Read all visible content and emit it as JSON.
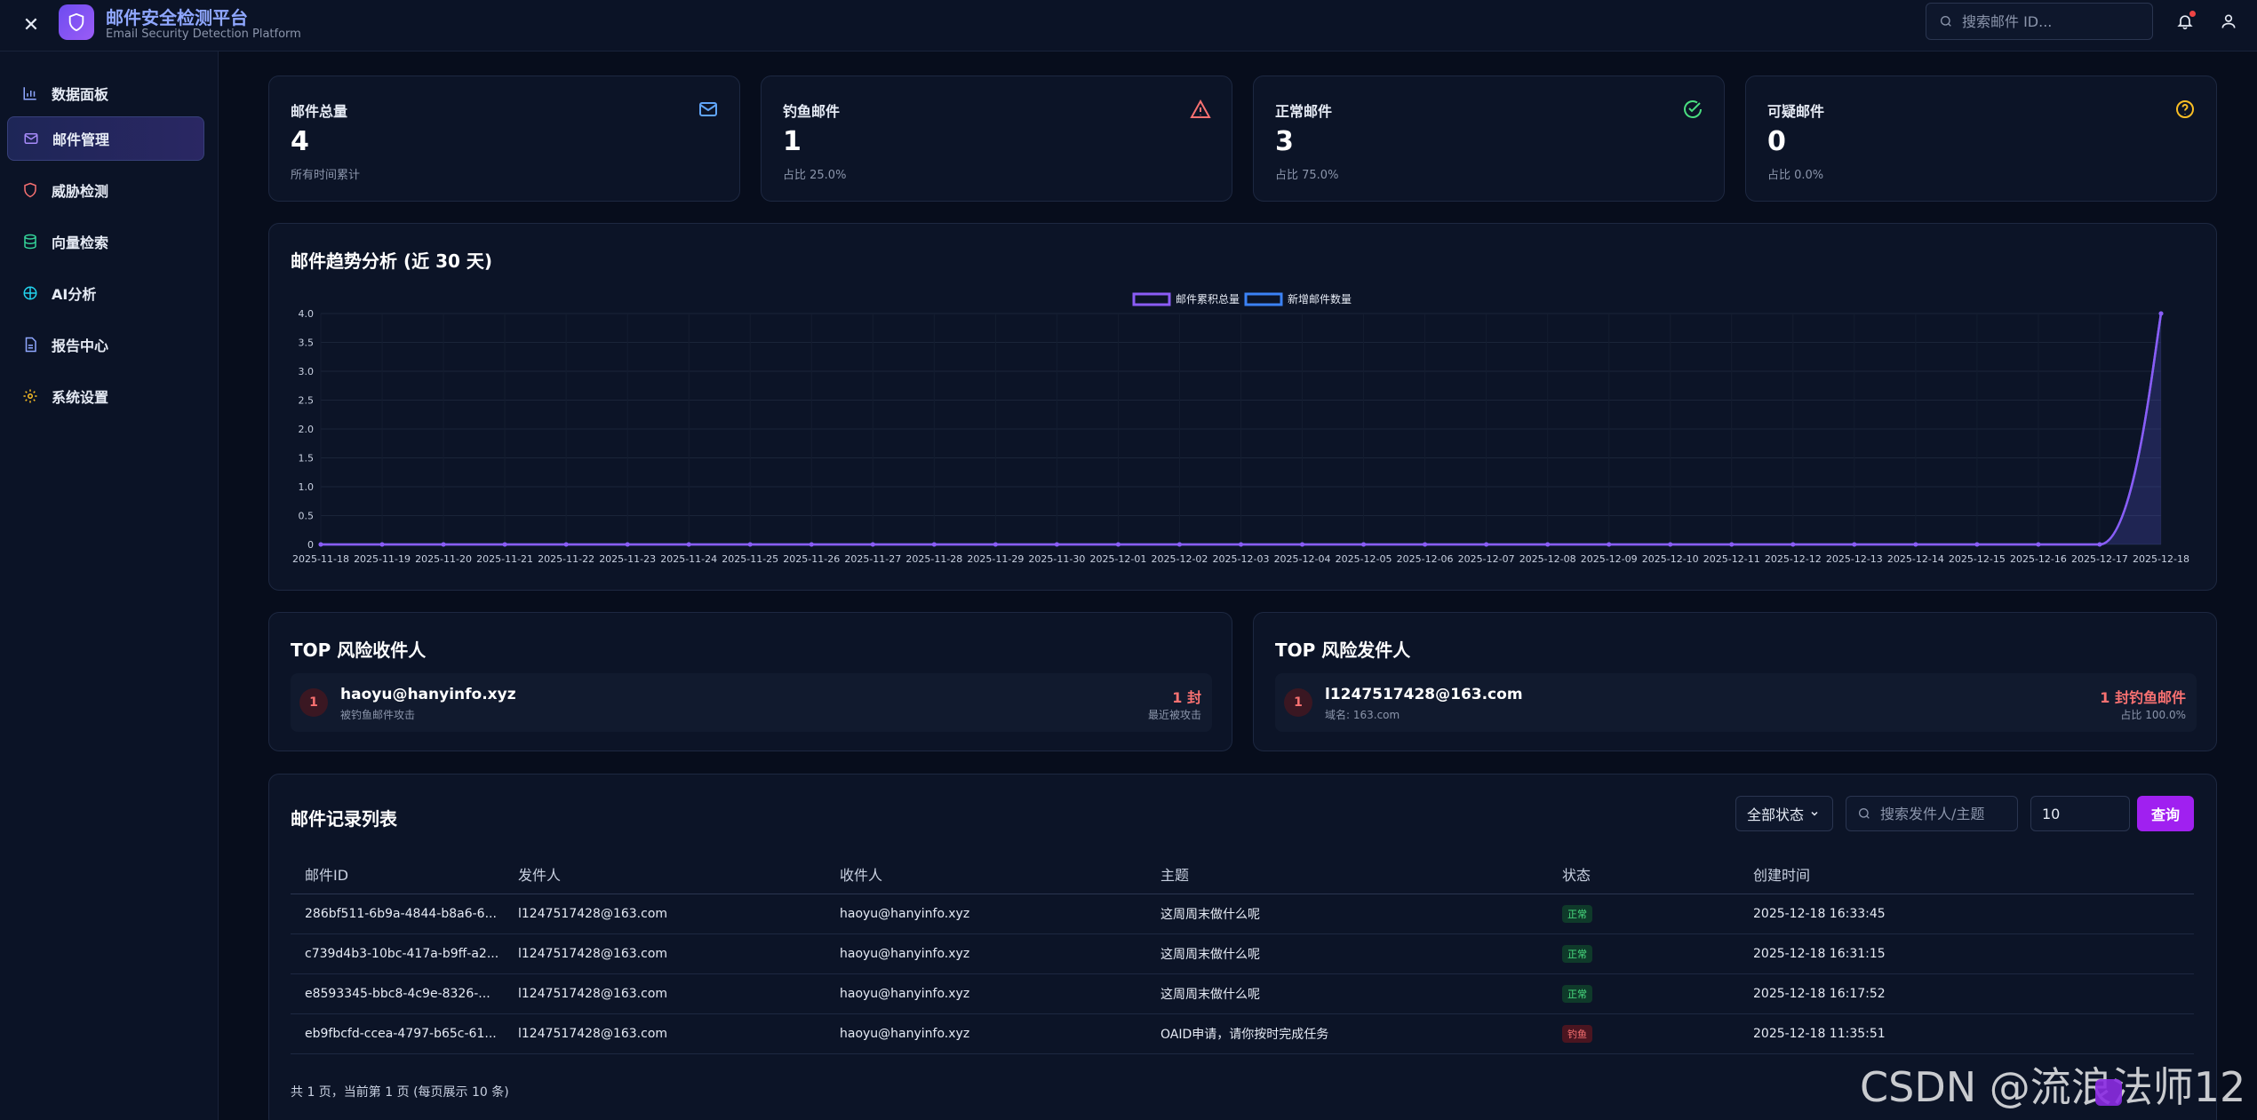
{
  "app": {
    "title": "邮件安全检测平台",
    "subtitle": "Email Security Detection Platform",
    "search_placeholder": "搜索邮件 ID..."
  },
  "sidebar": {
    "items": [
      {
        "label": "数据面板",
        "icon": "bar-chart-icon",
        "color": "#8fa7ff"
      },
      {
        "label": "邮件管理",
        "icon": "mail-icon",
        "color": "#a78bfa",
        "active": true
      },
      {
        "label": "威胁检测",
        "icon": "shield-icon",
        "color": "#f87171"
      },
      {
        "label": "向量检索",
        "icon": "database-icon",
        "color": "#34d399"
      },
      {
        "label": "AI分析",
        "icon": "brain-icon",
        "color": "#22d3ee"
      },
      {
        "label": "报告中心",
        "icon": "file-text-icon",
        "color": "#8fa7ff"
      },
      {
        "label": "系统设置",
        "icon": "gear-icon",
        "color": "#fbbf24"
      }
    ]
  },
  "stats": [
    {
      "label": "邮件总量",
      "value": "4",
      "note": "所有时间累计",
      "icon": "mail-icon",
      "color": "#60a5fa"
    },
    {
      "label": "钓鱼邮件",
      "value": "1",
      "note": "占比 25.0%",
      "icon": "alert-triangle-icon",
      "color": "#f87171"
    },
    {
      "label": "正常邮件",
      "value": "3",
      "note": "占比 75.0%",
      "icon": "check-circle-icon",
      "color": "#4ade80"
    },
    {
      "label": "可疑邮件",
      "value": "0",
      "note": "占比 0.0%",
      "icon": "question-circle-icon",
      "color": "#fbbf24"
    }
  ],
  "trend": {
    "title": "邮件趋势分析 (近 30 天)"
  },
  "chart_data": {
    "type": "line",
    "title": "邮件趋势分析 (近 30 天)",
    "legend_position": "top-center",
    "ylim": [
      0,
      4.0
    ],
    "yticks": [
      "0",
      "0.5",
      "1.0",
      "1.5",
      "2.0",
      "2.5",
      "3.0",
      "3.5",
      "4.0"
    ],
    "grid": true,
    "x": [
      "2025-11-18",
      "2025-11-19",
      "2025-11-20",
      "2025-11-21",
      "2025-11-22",
      "2025-11-23",
      "2025-11-24",
      "2025-11-25",
      "2025-11-26",
      "2025-11-27",
      "2025-11-28",
      "2025-11-29",
      "2025-11-30",
      "2025-12-01",
      "2025-12-02",
      "2025-12-03",
      "2025-12-04",
      "2025-12-05",
      "2025-12-06",
      "2025-12-07",
      "2025-12-08",
      "2025-12-09",
      "2025-12-10",
      "2025-12-11",
      "2025-12-12",
      "2025-12-13",
      "2025-12-14",
      "2025-12-15",
      "2025-12-16",
      "2025-12-17",
      "2025-12-18"
    ],
    "series": [
      {
        "name": "邮件累积总量",
        "color": "#8b5cf6",
        "values": [
          0,
          0,
          0,
          0,
          0,
          0,
          0,
          0,
          0,
          0,
          0,
          0,
          0,
          0,
          0,
          0,
          0,
          0,
          0,
          0,
          0,
          0,
          0,
          0,
          0,
          0,
          0,
          0,
          0,
          0,
          4
        ]
      },
      {
        "name": "新增邮件数量",
        "color": "#3b82f6",
        "values": [
          0,
          0,
          0,
          0,
          0,
          0,
          0,
          0,
          0,
          0,
          0,
          0,
          0,
          0,
          0,
          0,
          0,
          0,
          0,
          0,
          0,
          0,
          0,
          0,
          0,
          0,
          0,
          0,
          0,
          0,
          4
        ]
      }
    ]
  },
  "top_recipients": {
    "title": "TOP 风险收件人",
    "rows": [
      {
        "rank": "1",
        "name": "haoyu@hanyinfo.xyz",
        "sub": "被钓鱼邮件攻击",
        "count": "1 封",
        "note": "最近被攻击"
      }
    ]
  },
  "top_senders": {
    "title": "TOP 风险发件人",
    "rows": [
      {
        "rank": "1",
        "name": "l1247517428@163.com",
        "sub": "域名: 163.com",
        "count": "1 封钓鱼邮件",
        "note": "占比 100.0%"
      }
    ]
  },
  "records": {
    "title": "邮件记录列表",
    "status_filter": "全部状态",
    "search_placeholder": "搜索发件人/主题",
    "page_size": "10",
    "query_label": "查询",
    "columns": [
      "邮件ID",
      "发件人",
      "收件人",
      "主题",
      "状态",
      "创建时间"
    ],
    "rows": [
      {
        "id": "286bf511-6b9a-4844-b8a6-6...",
        "from": "l1247517428@163.com",
        "to": "haoyu@hanyinfo.xyz",
        "subject": "这周周末做什么呢",
        "status": "正常",
        "status_type": "ok",
        "time": "2025-12-18 16:33:45"
      },
      {
        "id": "c739d4b3-10bc-417a-b9ff-a2...",
        "from": "l1247517428@163.com",
        "to": "haoyu@hanyinfo.xyz",
        "subject": "这周周末做什么呢",
        "status": "正常",
        "status_type": "ok",
        "time": "2025-12-18 16:31:15"
      },
      {
        "id": "e8593345-bbc8-4c9e-8326-...",
        "from": "l1247517428@163.com",
        "to": "haoyu@hanyinfo.xyz",
        "subject": "这周周末做什么呢",
        "status": "正常",
        "status_type": "ok",
        "time": "2025-12-18 16:17:52"
      },
      {
        "id": "eb9fbcfd-ccea-4797-b65c-61...",
        "from": "l1247517428@163.com",
        "to": "haoyu@hanyinfo.xyz",
        "subject": "OAID申请，请你按时完成任务",
        "status": "钓鱼",
        "status_type": "bad",
        "time": "2025-12-18 11:35:51"
      }
    ],
    "pager": "共 1 页，当前第 1 页 (每页展示 10 条)"
  },
  "watermark": "CSDN @流浪法师12"
}
